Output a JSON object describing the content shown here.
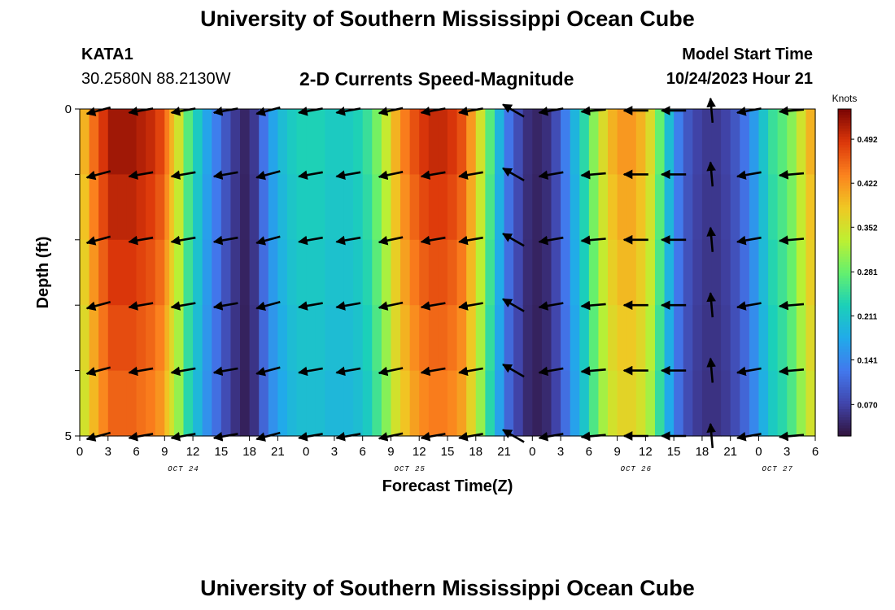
{
  "page": {
    "title": "University of Southern Mississippi Ocean Cube",
    "footer_title": "University of Southern Mississippi Ocean Cube"
  },
  "station": {
    "id": "KATA1",
    "coords": "30.2580N  88.2130W"
  },
  "model": {
    "label": "Model Start Time",
    "start": "10/24/2023 Hour 21"
  },
  "chart_data": {
    "type": "heatmap",
    "subtitle": "2-D Currents Speed-Magnitude",
    "xlabel": "Forecast Time(Z)",
    "ylabel": "Depth (ft)",
    "x_range_hours": [
      0,
      78
    ],
    "y_range_ft": [
      0,
      5
    ],
    "y_ticks": [
      {
        "value": 0,
        "label": "0"
      },
      {
        "value": 1,
        "label": ""
      },
      {
        "value": 2,
        "label": ""
      },
      {
        "value": 3,
        "label": ""
      },
      {
        "value": 4,
        "label": ""
      },
      {
        "value": 5,
        "label": "5"
      }
    ],
    "x_tick_labels": [
      "0",
      "3",
      "6",
      "9",
      "12",
      "15",
      "18",
      "21",
      "0",
      "3",
      "6",
      "9",
      "12",
      "15",
      "18",
      "21",
      "0",
      "3",
      "6",
      "9",
      "12",
      "15",
      "18",
      "21",
      "0",
      "3",
      "6"
    ],
    "day_labels": [
      {
        "label": "OCT 24",
        "hour": 11
      },
      {
        "label": "OCT 25",
        "hour": 35
      },
      {
        "label": "OCT 26",
        "hour": 59
      },
      {
        "label": "OCT 27",
        "hour": 74
      }
    ],
    "colorbar": {
      "title": "Knots",
      "min": 0.02,
      "max": 0.54,
      "tick_values": [
        0.07,
        0.141,
        0.211,
        0.281,
        0.352,
        0.422,
        0.492
      ],
      "tick_labels": [
        "0.070",
        "0.141",
        "0.211",
        "0.281",
        "0.352",
        "0.422",
        "0.492"
      ]
    },
    "speed_profile": {
      "hours": [
        0,
        1,
        2,
        3,
        4,
        5,
        6,
        7,
        8,
        9,
        9.5,
        10,
        11,
        12,
        13,
        14,
        15,
        16,
        17,
        18,
        19,
        20,
        21,
        22,
        23,
        24,
        25,
        26,
        27,
        28,
        29,
        30,
        31,
        32,
        33,
        34,
        35,
        36,
        37,
        38,
        39,
        40,
        41,
        42,
        43,
        44,
        45,
        46,
        47,
        48,
        49,
        50,
        51,
        52,
        53,
        54,
        55,
        56,
        57,
        58,
        59,
        60,
        61,
        62,
        63,
        64,
        65,
        66,
        67,
        68,
        69,
        70,
        71,
        72,
        73,
        74,
        75,
        76,
        77,
        78
      ],
      "knots": [
        0.4,
        0.45,
        0.49,
        0.52,
        0.52,
        0.52,
        0.51,
        0.5,
        0.48,
        0.44,
        0.4,
        0.35,
        0.27,
        0.22,
        0.17,
        0.13,
        0.09,
        0.06,
        0.04,
        0.06,
        0.12,
        0.17,
        0.2,
        0.22,
        0.23,
        0.23,
        0.23,
        0.22,
        0.22,
        0.22,
        0.23,
        0.25,
        0.29,
        0.34,
        0.4,
        0.44,
        0.47,
        0.49,
        0.5,
        0.5,
        0.49,
        0.47,
        0.42,
        0.35,
        0.27,
        0.19,
        0.12,
        0.08,
        0.05,
        0.04,
        0.05,
        0.08,
        0.13,
        0.19,
        0.24,
        0.3,
        0.36,
        0.4,
        0.42,
        0.42,
        0.4,
        0.36,
        0.28,
        0.2,
        0.13,
        0.09,
        0.07,
        0.06,
        0.06,
        0.07,
        0.09,
        0.12,
        0.16,
        0.21,
        0.25,
        0.27,
        0.3,
        0.35,
        0.4,
        0.45
      ]
    },
    "vectors": {
      "hours": [
        2,
        6.5,
        11,
        15.5,
        20,
        24.5,
        28.5,
        33,
        37.5,
        41.5,
        46,
        50,
        54.5,
        59,
        63,
        67,
        71,
        75.5
      ],
      "depths_ft": [
        0,
        1,
        2,
        3,
        4,
        5
      ],
      "directions_deg": [
        195,
        190,
        190,
        190,
        195,
        190,
        190,
        192,
        190,
        190,
        150,
        190,
        185,
        180,
        180,
        95,
        190,
        185
      ],
      "speed_scale": [
        1,
        1,
        1,
        1,
        1,
        1,
        1,
        1,
        1,
        1,
        1,
        1,
        1,
        1,
        1,
        1,
        1,
        1
      ]
    }
  }
}
